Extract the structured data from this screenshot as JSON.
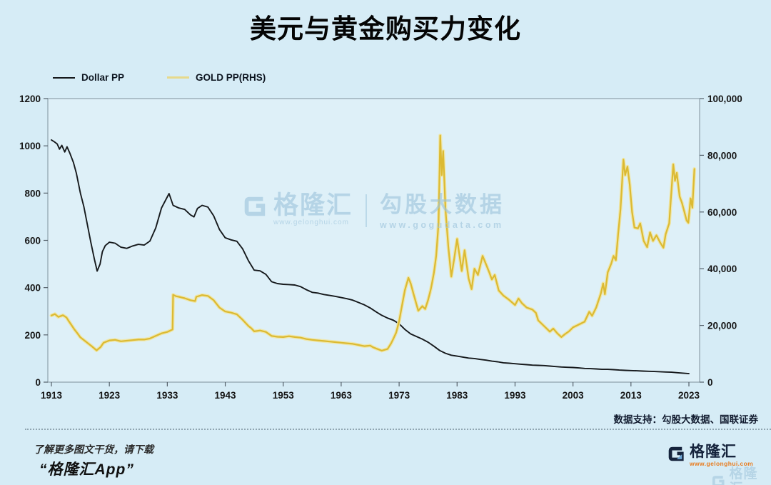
{
  "title": "美元与黄金购买力变化",
  "legend": [
    {
      "label": "Dollar PP",
      "color": "#15181b"
    },
    {
      "label": "GOLD PP(RHS)",
      "color": "#e7d98c"
    }
  ],
  "watermark": {
    "brand": "格隆汇",
    "brand_url": "www.gelonghui.com",
    "partner": "勾股大数据",
    "partner_url": "www.gogudata.com"
  },
  "source_note": "数据支持：勾股大数据、国联证券",
  "footer": {
    "line1": "了解更多图文干货，请下载",
    "line2": "“格隆汇App”",
    "logo_name": "格隆汇",
    "logo_url": "www.gelonghui.com",
    "echo_name": "格隆汇"
  },
  "colors": {
    "background": "#d6ecf6",
    "plot_fill": "#def0f8",
    "plot_border": "#8ea1ab",
    "dollar_line": "#16191c",
    "gold_core": "#dcba32",
    "gold_halo": "#f0e5a4",
    "axis_text": "#161616"
  },
  "chart_data": {
    "type": "line",
    "title": "美元与黄金购买力变化",
    "grid": false,
    "legend_position": "top-left",
    "x_ticks": [
      1913,
      1923,
      1933,
      1943,
      1953,
      1963,
      1973,
      1983,
      1993,
      2003,
      2013,
      2023
    ],
    "x_range": [
      1912.4,
      2024.8
    ],
    "left_axis": {
      "range": [
        0,
        1200
      ],
      "tick_values": [
        0,
        200,
        400,
        600,
        800,
        1000,
        1200
      ],
      "tick_labels": [
        "0",
        "200",
        "400",
        "600",
        "800",
        "1000",
        "1200"
      ]
    },
    "right_axis": {
      "range": [
        0,
        100000
      ],
      "tick_values": [
        0,
        20000,
        40000,
        60000,
        80000,
        100000
      ],
      "tick_labels": [
        "0",
        "20,000",
        "40,000",
        "60,000",
        "80,000",
        "100,000"
      ]
    },
    "series": [
      {
        "name": "Dollar PP",
        "axis": "left",
        "points": [
          [
            1913,
            1025
          ],
          [
            1913.5,
            1017
          ],
          [
            1914,
            1008
          ],
          [
            1914.4,
            986
          ],
          [
            1914.8,
            1002
          ],
          [
            1915.3,
            974
          ],
          [
            1915.7,
            996
          ],
          [
            1916.2,
            968
          ],
          [
            1916.8,
            930
          ],
          [
            1917.3,
            885
          ],
          [
            1918,
            800
          ],
          [
            1918.6,
            742
          ],
          [
            1919.2,
            668
          ],
          [
            1919.8,
            592
          ],
          [
            1920.4,
            522
          ],
          [
            1920.9,
            470
          ],
          [
            1921.4,
            500
          ],
          [
            1921.8,
            552
          ],
          [
            1922.3,
            578
          ],
          [
            1923,
            592
          ],
          [
            1924,
            588
          ],
          [
            1925,
            571
          ],
          [
            1926,
            566
          ],
          [
            1927,
            576
          ],
          [
            1928,
            583
          ],
          [
            1929,
            580
          ],
          [
            1930,
            597
          ],
          [
            1931,
            652
          ],
          [
            1932,
            737
          ],
          [
            1933.3,
            798
          ],
          [
            1934,
            748
          ],
          [
            1935,
            737
          ],
          [
            1936,
            731
          ],
          [
            1937,
            708
          ],
          [
            1937.6,
            699
          ],
          [
            1938.2,
            735
          ],
          [
            1939,
            748
          ],
          [
            1940,
            741
          ],
          [
            1941,
            704
          ],
          [
            1942,
            646
          ],
          [
            1943,
            611
          ],
          [
            1944,
            602
          ],
          [
            1945,
            596
          ],
          [
            1946,
            564
          ],
          [
            1947,
            514
          ],
          [
            1948,
            474
          ],
          [
            1949,
            471
          ],
          [
            1950,
            456
          ],
          [
            1951,
            425
          ],
          [
            1952,
            417
          ],
          [
            1953,
            414
          ],
          [
            1954,
            413
          ],
          [
            1955,
            411
          ],
          [
            1956,
            404
          ],
          [
            1957,
            391
          ],
          [
            1958,
            380
          ],
          [
            1959,
            377
          ],
          [
            1960,
            371
          ],
          [
            1961,
            367
          ],
          [
            1962,
            363
          ],
          [
            1963,
            358
          ],
          [
            1964,
            353
          ],
          [
            1965,
            347
          ],
          [
            1966,
            337
          ],
          [
            1967,
            327
          ],
          [
            1968,
            314
          ],
          [
            1969,
            298
          ],
          [
            1970,
            283
          ],
          [
            1971,
            271
          ],
          [
            1972,
            262
          ],
          [
            1973,
            247
          ],
          [
            1974,
            223
          ],
          [
            1975,
            204
          ],
          [
            1976,
            193
          ],
          [
            1977,
            182
          ],
          [
            1978,
            169
          ],
          [
            1979,
            152
          ],
          [
            1980,
            134
          ],
          [
            1981,
            122
          ],
          [
            1982,
            114
          ],
          [
            1983,
            110
          ],
          [
            1984,
            106
          ],
          [
            1985,
            102
          ],
          [
            1986,
            100
          ],
          [
            1987,
            96
          ],
          [
            1988,
            93
          ],
          [
            1989,
            89
          ],
          [
            1990,
            86
          ],
          [
            1991,
            82
          ],
          [
            1992,
            80
          ],
          [
            1993,
            78
          ],
          [
            1994,
            76
          ],
          [
            1995,
            74
          ],
          [
            1996,
            72
          ],
          [
            1997,
            71
          ],
          [
            1998,
            70
          ],
          [
            1999,
            68
          ],
          [
            2000,
            66
          ],
          [
            2001,
            64
          ],
          [
            2002,
            63
          ],
          [
            2003,
            62
          ],
          [
            2004,
            60
          ],
          [
            2005,
            58
          ],
          [
            2006,
            57
          ],
          [
            2007,
            56
          ],
          [
            2008,
            54
          ],
          [
            2009,
            54
          ],
          [
            2010,
            53
          ],
          [
            2011,
            51
          ],
          [
            2012,
            50
          ],
          [
            2013,
            49
          ],
          [
            2014,
            48
          ],
          [
            2015,
            47
          ],
          [
            2016,
            46
          ],
          [
            2017,
            45
          ],
          [
            2018,
            44
          ],
          [
            2019,
            43
          ],
          [
            2020,
            42
          ],
          [
            2021,
            40
          ],
          [
            2022,
            38
          ],
          [
            2023,
            36
          ]
        ]
      },
      {
        "name": "GOLD PP(RHS)",
        "axis": "right",
        "points": [
          [
            1913,
            23500
          ],
          [
            1913.6,
            24000
          ],
          [
            1914.2,
            23000
          ],
          [
            1915,
            23600
          ],
          [
            1915.6,
            22800
          ],
          [
            1916,
            21500
          ],
          [
            1917,
            18500
          ],
          [
            1917.5,
            17200
          ],
          [
            1918,
            15800
          ],
          [
            1919,
            14200
          ],
          [
            1920,
            12600
          ],
          [
            1920.8,
            11200
          ],
          [
            1921.5,
            12400
          ],
          [
            1922,
            13900
          ],
          [
            1923,
            14700
          ],
          [
            1924,
            14900
          ],
          [
            1925,
            14400
          ],
          [
            1926,
            14600
          ],
          [
            1927,
            14800
          ],
          [
            1928,
            15000
          ],
          [
            1929,
            15000
          ],
          [
            1930,
            15400
          ],
          [
            1931,
            16300
          ],
          [
            1932,
            17200
          ],
          [
            1933,
            17700
          ],
          [
            1933.9,
            18600
          ],
          [
            1934,
            30800
          ],
          [
            1934.5,
            30300
          ],
          [
            1935,
            30100
          ],
          [
            1936,
            29600
          ],
          [
            1937,
            28900
          ],
          [
            1937.8,
            28600
          ],
          [
            1938,
            30100
          ],
          [
            1939,
            30700
          ],
          [
            1940,
            30400
          ],
          [
            1941,
            28900
          ],
          [
            1942,
            26300
          ],
          [
            1943,
            24900
          ],
          [
            1944,
            24500
          ],
          [
            1945,
            23900
          ],
          [
            1946,
            22000
          ],
          [
            1947,
            19800
          ],
          [
            1947.5,
            19000
          ],
          [
            1948,
            17900
          ],
          [
            1949,
            18200
          ],
          [
            1950,
            17700
          ],
          [
            1951,
            16300
          ],
          [
            1952,
            16000
          ],
          [
            1953,
            15900
          ],
          [
            1954,
            16200
          ],
          [
            1955,
            15900
          ],
          [
            1956,
            15700
          ],
          [
            1957,
            15200
          ],
          [
            1958,
            14900
          ],
          [
            1959,
            14700
          ],
          [
            1960,
            14500
          ],
          [
            1961,
            14300
          ],
          [
            1962,
            14100
          ],
          [
            1963,
            13900
          ],
          [
            1964,
            13700
          ],
          [
            1965,
            13500
          ],
          [
            1966,
            13100
          ],
          [
            1967,
            12700
          ],
          [
            1968,
            12900
          ],
          [
            1968.5,
            12300
          ],
          [
            1969,
            11900
          ],
          [
            1970,
            11100
          ],
          [
            1971,
            11700
          ],
          [
            1971.6,
            13600
          ],
          [
            1972,
            15300
          ],
          [
            1972.5,
            17500
          ],
          [
            1973,
            21500
          ],
          [
            1973.5,
            27000
          ],
          [
            1974,
            32500
          ],
          [
            1974.6,
            36800
          ],
          [
            1975,
            34800
          ],
          [
            1975.5,
            31000
          ],
          [
            1976.3,
            25200
          ],
          [
            1977,
            26800
          ],
          [
            1977.5,
            25800
          ],
          [
            1978,
            29000
          ],
          [
            1978.5,
            33000
          ],
          [
            1979,
            38500
          ],
          [
            1979.4,
            44500
          ],
          [
            1979.8,
            56000
          ],
          [
            1980.1,
            87000
          ],
          [
            1980.35,
            73000
          ],
          [
            1980.6,
            81500
          ],
          [
            1981,
            61000
          ],
          [
            1981.5,
            47500
          ],
          [
            1982,
            37200
          ],
          [
            1982.5,
            43500
          ],
          [
            1983,
            50500
          ],
          [
            1983.8,
            39200
          ],
          [
            1984.3,
            46500
          ],
          [
            1985,
            36500
          ],
          [
            1985.5,
            32800
          ],
          [
            1986,
            40000
          ],
          [
            1986.6,
            37800
          ],
          [
            1987.4,
            44500
          ],
          [
            1988,
            41500
          ],
          [
            1988.6,
            38500
          ],
          [
            1989,
            36200
          ],
          [
            1989.5,
            37800
          ],
          [
            1990.2,
            32300
          ],
          [
            1991,
            30500
          ],
          [
            1992,
            29000
          ],
          [
            1993,
            27200
          ],
          [
            1993.6,
            29500
          ],
          [
            1994.2,
            27800
          ],
          [
            1995,
            26300
          ],
          [
            1996,
            25600
          ],
          [
            1996.6,
            24400
          ],
          [
            1997,
            21800
          ],
          [
            1998,
            19800
          ],
          [
            1999,
            17800
          ],
          [
            1999.6,
            18900
          ],
          [
            2000.3,
            17200
          ],
          [
            2001,
            15900
          ],
          [
            2001.6,
            16900
          ],
          [
            2002.3,
            17900
          ],
          [
            2003,
            19300
          ],
          [
            2004,
            20300
          ],
          [
            2005,
            21300
          ],
          [
            2005.8,
            24800
          ],
          [
            2006.3,
            23400
          ],
          [
            2007,
            26300
          ],
          [
            2007.8,
            31200
          ],
          [
            2008.2,
            34800
          ],
          [
            2008.5,
            31000
          ],
          [
            2009,
            38700
          ],
          [
            2009.6,
            41800
          ],
          [
            2010,
            44500
          ],
          [
            2010.4,
            43000
          ],
          [
            2010.8,
            52500
          ],
          [
            2011.2,
            61000
          ],
          [
            2011.7,
            78500
          ],
          [
            2012,
            73000
          ],
          [
            2012.4,
            76000
          ],
          [
            2012.8,
            69500
          ],
          [
            2013.2,
            60000
          ],
          [
            2013.6,
            54500
          ],
          [
            2014.2,
            54200
          ],
          [
            2014.6,
            56000
          ],
          [
            2015.2,
            49800
          ],
          [
            2015.8,
            47600
          ],
          [
            2016.3,
            52800
          ],
          [
            2016.8,
            49800
          ],
          [
            2017.4,
            51800
          ],
          [
            2018,
            49400
          ],
          [
            2018.6,
            47400
          ],
          [
            2019,
            52200
          ],
          [
            2019.6,
            56000
          ],
          [
            2020.3,
            76800
          ],
          [
            2020.6,
            71000
          ],
          [
            2020.9,
            73800
          ],
          [
            2021.4,
            65500
          ],
          [
            2021.8,
            63200
          ],
          [
            2022.2,
            60200
          ],
          [
            2022.6,
            57000
          ],
          [
            2022.9,
            56200
          ],
          [
            2023.3,
            64800
          ],
          [
            2023.6,
            61500
          ],
          [
            2023.95,
            75200
          ]
        ]
      }
    ]
  }
}
